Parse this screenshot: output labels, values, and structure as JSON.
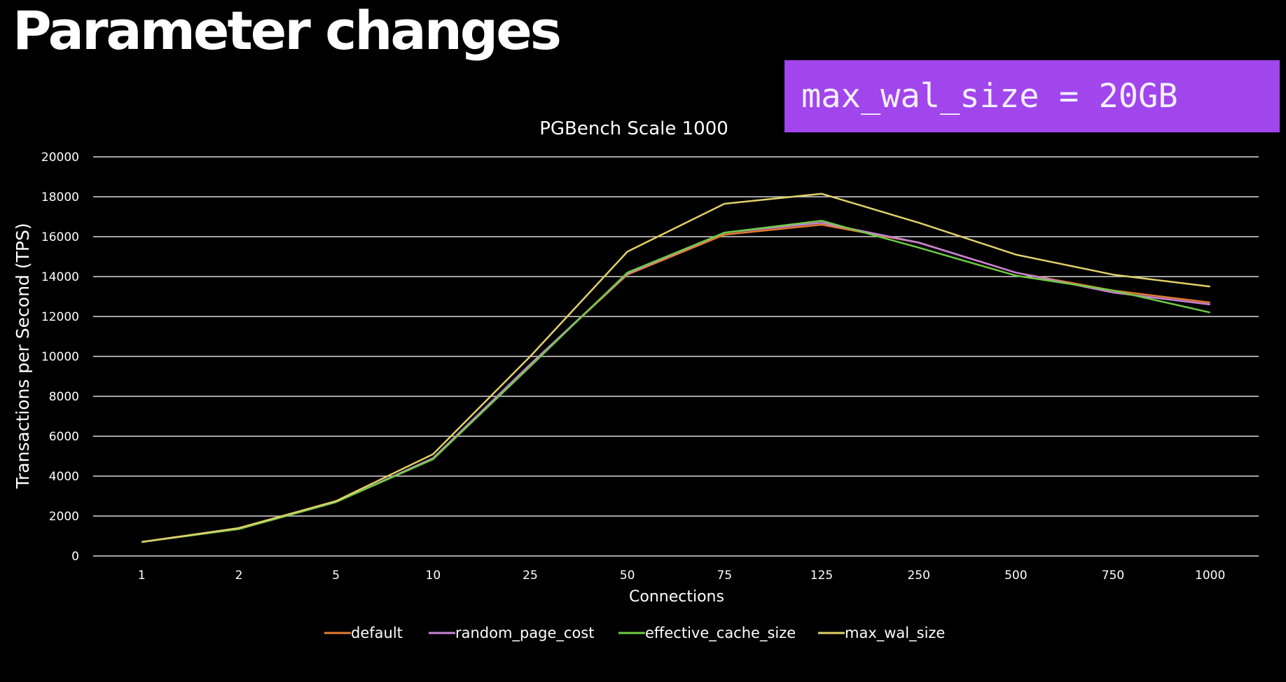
{
  "slide": {
    "title": "Parameter changes",
    "callout_text": "max_wal_size = 20GB",
    "callout_color": "#a145ec"
  },
  "chart_data": {
    "type": "line",
    "title": "PGBench Scale 1000",
    "xlabel": "Connections",
    "ylabel": "Transactions per Second (TPS)",
    "categories": [
      "1",
      "2",
      "5",
      "10",
      "25",
      "50",
      "75",
      "125",
      "250",
      "500",
      "750",
      "1000"
    ],
    "ylim": [
      0,
      20000
    ],
    "yticks": [
      0,
      2000,
      4000,
      6000,
      8000,
      10000,
      12000,
      14000,
      16000,
      18000,
      20000
    ],
    "grid": true,
    "legend_position": "bottom",
    "series": [
      {
        "name": "default",
        "color": "#e57c32",
        "values": [
          700,
          1350,
          2700,
          4900,
          9600,
          14100,
          16100,
          16600,
          15700,
          14200,
          13300,
          12700
        ]
      },
      {
        "name": "random_page_cost",
        "color": "#c882d6",
        "values": [
          700,
          1350,
          2700,
          4900,
          9600,
          14150,
          16200,
          16700,
          15700,
          14200,
          13200,
          12600
        ]
      },
      {
        "name": "effective_cache_size",
        "color": "#6fcb44",
        "values": [
          700,
          1350,
          2700,
          4850,
          9500,
          14200,
          16200,
          16800,
          15450,
          14050,
          13300,
          12200
        ]
      },
      {
        "name": "max_wal_size",
        "color": "#e0d06a",
        "values": [
          700,
          1400,
          2750,
          5100,
          10000,
          15250,
          17650,
          18150,
          16700,
          15100,
          14100,
          13500
        ]
      }
    ]
  }
}
